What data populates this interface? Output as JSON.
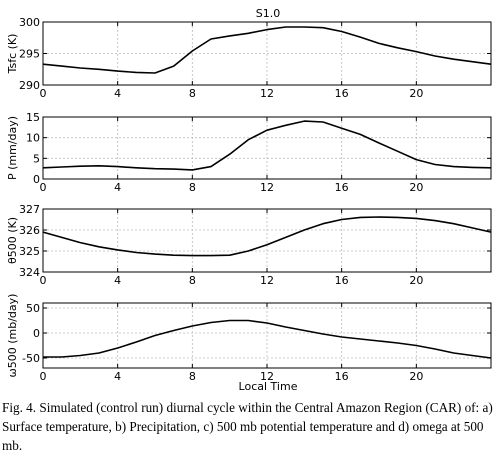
{
  "figure": {
    "title": "S1.0",
    "x_label": "Local Time"
  },
  "caption": "Fig. 4. Simulated (control run) diurnal cycle within the Central Amazon Region (CAR) of: a) Surface temperature, b) Precipitation, c) 500 mb potential temperature and d) omega at 500 mb.",
  "chart_data": [
    {
      "type": "line",
      "ylabel": "Tsfc (K)",
      "xlim": [
        0,
        24
      ],
      "ylim": [
        290,
        300
      ],
      "xticks": [
        0,
        4,
        8,
        12,
        16,
        20
      ],
      "yticks": [
        290,
        295,
        300
      ],
      "grid": true,
      "x": [
        0,
        1,
        2,
        3,
        4,
        5,
        6,
        7,
        8,
        9,
        10,
        11,
        12,
        13,
        14,
        15,
        16,
        17,
        18,
        19,
        20,
        21,
        22,
        23,
        24
      ],
      "values": [
        293.3,
        293.0,
        292.7,
        292.5,
        292.2,
        292.0,
        291.9,
        293.0,
        295.4,
        297.3,
        297.8,
        298.2,
        298.8,
        299.2,
        299.2,
        299.1,
        298.5,
        297.6,
        296.6,
        295.9,
        295.3,
        294.6,
        294.1,
        293.7,
        293.3
      ]
    },
    {
      "type": "line",
      "ylabel": "P (mm/day)",
      "xlim": [
        0,
        24
      ],
      "ylim": [
        0,
        15
      ],
      "xticks": [
        0,
        4,
        8,
        12,
        16,
        20
      ],
      "yticks": [
        0,
        5,
        10,
        15
      ],
      "grid": true,
      "x": [
        0,
        1,
        2,
        3,
        4,
        5,
        6,
        7,
        8,
        9,
        10,
        11,
        12,
        13,
        14,
        15,
        16,
        17,
        18,
        19,
        20,
        21,
        22,
        23,
        24
      ],
      "values": [
        2.7,
        2.9,
        3.1,
        3.2,
        3.0,
        2.7,
        2.5,
        2.4,
        2.2,
        3.0,
        6.0,
        9.5,
        11.8,
        13.0,
        14.0,
        13.8,
        12.3,
        10.8,
        8.7,
        6.7,
        4.7,
        3.5,
        3.0,
        2.8,
        2.7
      ]
    },
    {
      "type": "line",
      "ylabel": "θ500 (K)",
      "xlim": [
        0,
        24
      ],
      "ylim": [
        324,
        327
      ],
      "xticks": [
        0,
        4,
        8,
        12,
        16,
        20
      ],
      "yticks": [
        324,
        325,
        326,
        327
      ],
      "grid": true,
      "x": [
        0,
        1,
        2,
        3,
        4,
        5,
        6,
        7,
        8,
        9,
        10,
        11,
        12,
        13,
        14,
        15,
        16,
        17,
        18,
        19,
        20,
        21,
        22,
        23,
        24
      ],
      "values": [
        325.9,
        325.65,
        325.4,
        325.2,
        325.05,
        324.93,
        324.85,
        324.8,
        324.78,
        324.78,
        324.8,
        325.0,
        325.3,
        325.65,
        326.0,
        326.3,
        326.5,
        326.6,
        326.62,
        326.6,
        326.55,
        326.45,
        326.3,
        326.1,
        325.9
      ]
    },
    {
      "type": "line",
      "ylabel": "ω500 (mb/day)",
      "xlim": [
        0,
        24
      ],
      "ylim": [
        -70,
        60
      ],
      "xticks": [
        0,
        4,
        8,
        12,
        16,
        20
      ],
      "yticks": [
        -50,
        0,
        50
      ],
      "grid": true,
      "x": [
        0,
        1,
        2,
        3,
        4,
        5,
        6,
        7,
        8,
        9,
        10,
        11,
        12,
        13,
        14,
        15,
        16,
        17,
        18,
        19,
        20,
        21,
        22,
        23,
        24
      ],
      "values": [
        -48,
        -48,
        -45,
        -40,
        -30,
        -18,
        -5,
        5,
        14,
        21,
        25,
        25,
        20,
        12,
        5,
        -2,
        -8,
        -12,
        -16,
        -20,
        -25,
        -32,
        -40,
        -45,
        -50
      ]
    }
  ]
}
